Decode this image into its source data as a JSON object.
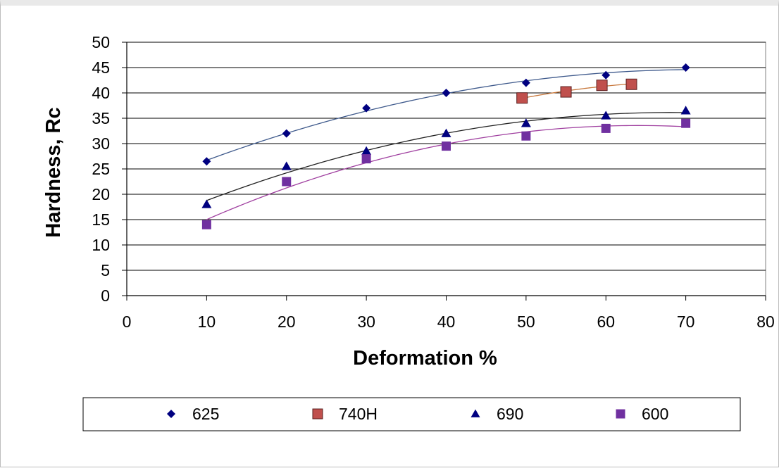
{
  "chart_data": {
    "type": "scatter",
    "title": "",
    "xlabel": "Deformation %",
    "ylabel": "Hardness, Rc",
    "xlim": [
      0,
      80
    ],
    "ylim": [
      0,
      50
    ],
    "x_ticks": [
      0,
      10,
      20,
      30,
      40,
      50,
      60,
      70,
      80
    ],
    "y_ticks": [
      0,
      5,
      10,
      15,
      20,
      25,
      30,
      35,
      40,
      45,
      50
    ],
    "grid": "horizontal",
    "legend_position": "bottom",
    "trendlines": "polynomial",
    "series": [
      {
        "name": "625",
        "marker": "diamond",
        "color": "#000080",
        "line_color": "#3f5a8c",
        "points": [
          [
            10,
            26.5
          ],
          [
            20,
            32
          ],
          [
            30,
            37
          ],
          [
            40,
            40
          ],
          [
            50,
            42
          ],
          [
            60,
            43.5
          ],
          [
            70,
            45
          ]
        ]
      },
      {
        "name": "740H",
        "marker": "square",
        "color": "#c0504d",
        "line_color": "#c8783c",
        "points": [
          [
            49.5,
            39
          ],
          [
            55,
            40.2
          ],
          [
            59.5,
            41.5
          ],
          [
            63.2,
            41.7
          ]
        ]
      },
      {
        "name": "690",
        "marker": "triangle",
        "color": "#000080",
        "line_color": "#222222",
        "points": [
          [
            10,
            18
          ],
          [
            20,
            25.5
          ],
          [
            30,
            28.5
          ],
          [
            40,
            32
          ],
          [
            50,
            34
          ],
          [
            60,
            35.5
          ],
          [
            70,
            36.5
          ]
        ]
      },
      {
        "name": "600",
        "marker": "square",
        "color": "#7030a0",
        "line_color": "#a040a0",
        "points": [
          [
            10,
            14
          ],
          [
            20,
            22.5
          ],
          [
            30,
            27
          ],
          [
            40,
            29.5
          ],
          [
            50,
            31.5
          ],
          [
            60,
            33
          ],
          [
            70,
            34
          ]
        ]
      }
    ]
  }
}
